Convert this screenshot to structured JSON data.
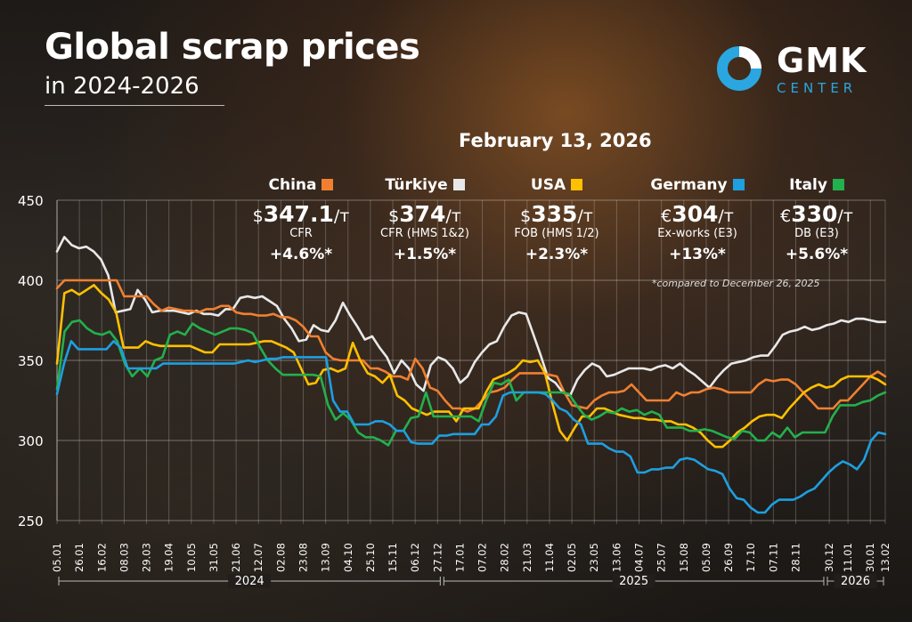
{
  "header": {
    "title": "Global scrap prices",
    "subtitle": "in 2024-2026",
    "date": "February 13, 2026",
    "note": "*compared to December 26, 2025"
  },
  "logo": {
    "word": "GMK",
    "sub": "CENTER",
    "accent": "#2aa7e0"
  },
  "cards": [
    {
      "name": "China",
      "currency": "$",
      "value": "347.1",
      "unit": "/т",
      "basis": "CFR",
      "change": "+4.6%*",
      "color": "#f08030"
    },
    {
      "name": "Türkiye",
      "currency": "$",
      "value": "374",
      "unit": "/т",
      "basis": "CFR (HMS 1&2)",
      "change": "+1.5%*",
      "color": "#e8e8e8"
    },
    {
      "name": "USA",
      "currency": "$",
      "value": "335",
      "unit": "/т",
      "basis": "FOB (HMS 1/2)",
      "change": "+2.3%*",
      "color": "#ffc000"
    },
    {
      "name": "Germany",
      "currency": "€",
      "value": "304",
      "unit": "/т",
      "basis": "Ex-works (E3)",
      "change": "+13%*",
      "color": "#1e9fe0"
    },
    {
      "name": "Italy",
      "currency": "€",
      "value": "330",
      "unit": "/т",
      "basis": "DB (E3)",
      "change": "+5.6%*",
      "color": "#22b14c"
    }
  ],
  "chart_data": {
    "type": "line",
    "ylim": [
      250,
      450
    ],
    "yticks": [
      250,
      300,
      350,
      400,
      450
    ],
    "grid": true,
    "legend": "top",
    "x_tick_labels": [
      "05.01",
      "26.01",
      "16.02",
      "08.03",
      "29.03",
      "19.04",
      "10.05",
      "31.05",
      "21.06",
      "12.07",
      "02.08",
      "23.08",
      "13.09",
      "04.10",
      "25.10",
      "15.11",
      "06.12",
      "27.12",
      "17.01",
      "07.02",
      "28.02",
      "21.03",
      "11.04",
      "02.05",
      "23.05",
      "13.06",
      "04.07",
      "25.07",
      "15.08",
      "05.09",
      "26.09",
      "17.10",
      "07.11",
      "28.11",
      "30.12",
      "11.01",
      "30.01",
      "13.02"
    ],
    "x_tick_pos": [
      0,
      3,
      6,
      9,
      12,
      15,
      18,
      21,
      24,
      27,
      30,
      33,
      36,
      39,
      42,
      45,
      48,
      51,
      54,
      57,
      60,
      63,
      66,
      69,
      72,
      75,
      78,
      81,
      84,
      87,
      90,
      93,
      96,
      99,
      103.5,
      106,
      109,
      111
    ],
    "years": [
      {
        "label": "2024",
        "start": 0,
        "end": 51.6
      },
      {
        "label": "2025",
        "start": 51.6,
        "end": 103
      },
      {
        "label": "2026",
        "start": 103,
        "end": 111
      }
    ],
    "series": [
      {
        "name": "Türkiye",
        "color": "#e8e8e8",
        "values": [
          418,
          427,
          422,
          420,
          421,
          418,
          413,
          403,
          380,
          381,
          382,
          394,
          388,
          380,
          381,
          381,
          381,
          380,
          379,
          381,
          379,
          379,
          378,
          382,
          382,
          389,
          390,
          389,
          390,
          387,
          384,
          376,
          370,
          362,
          363,
          372,
          369,
          368,
          375,
          386,
          378,
          371,
          363,
          365,
          358,
          352,
          342,
          350,
          345,
          335,
          331,
          347,
          352,
          350,
          345,
          336,
          340,
          349,
          355,
          360,
          362,
          371,
          378,
          380,
          379,
          366,
          353,
          339,
          336,
          330,
          328,
          338,
          344,
          348,
          346,
          340,
          341,
          343,
          345,
          345,
          345,
          344,
          346,
          347,
          345,
          348,
          344,
          341,
          337,
          333,
          339,
          344,
          348,
          349,
          350,
          352,
          353,
          353,
          359,
          366,
          368,
          369,
          371,
          369,
          370,
          372,
          373,
          375,
          374,
          376,
          376,
          375,
          374,
          374
        ]
      },
      {
        "name": "China",
        "color": "#f08030",
        "values": [
          395,
          400,
          400,
          400,
          400,
          400,
          400,
          400,
          400,
          390,
          390,
          390,
          390,
          385,
          381,
          383,
          382,
          381,
          381,
          380,
          382,
          382,
          384,
          384,
          380,
          379,
          379,
          378,
          378,
          379,
          377,
          377,
          375,
          371,
          365,
          365,
          355,
          351,
          350,
          350,
          350,
          350,
          345,
          345,
          343,
          340,
          340,
          338,
          351,
          345,
          333,
          331,
          325,
          320,
          320,
          318,
          320,
          325,
          330,
          331,
          333,
          338,
          342,
          342,
          342,
          342,
          341,
          340,
          330,
          322,
          321,
          320,
          325,
          328,
          330,
          330,
          331,
          335,
          330,
          325,
          325,
          325,
          325,
          330,
          328,
          330,
          330,
          332,
          333,
          332,
          330,
          330,
          330,
          330,
          335,
          338,
          337,
          338,
          338,
          335,
          330,
          325,
          320,
          320,
          320,
          325,
          325,
          330,
          335,
          340,
          343,
          340
        ]
      },
      {
        "name": "USA",
        "color": "#ffc000",
        "values": [
          348,
          392,
          394,
          391,
          394,
          397,
          392,
          388,
          380,
          358,
          358,
          358,
          362,
          360,
          359,
          359,
          359,
          359,
          359,
          357,
          355,
          355,
          360,
          360,
          360,
          360,
          360,
          361,
          362,
          362,
          360,
          358,
          355,
          345,
          335,
          336,
          344,
          345,
          343,
          345,
          361,
          350,
          342,
          340,
          336,
          341,
          328,
          325,
          320,
          318,
          316,
          318,
          318,
          318,
          312,
          320,
          320,
          320,
          330,
          338,
          340,
          342,
          345,
          350,
          349,
          350,
          342,
          323,
          306,
          300,
          308,
          315,
          315,
          320,
          320,
          318,
          316,
          315,
          314,
          314,
          313,
          313,
          312,
          312,
          310,
          310,
          308,
          305,
          300,
          296,
          296,
          300,
          305,
          308,
          312,
          315,
          316,
          316,
          314,
          320,
          325,
          330,
          333,
          335,
          333,
          334,
          338,
          340,
          340,
          340,
          340,
          338,
          335
        ]
      },
      {
        "name": "Italy",
        "color": "#22b14c",
        "values": [
          332,
          368,
          374,
          375,
          370,
          367,
          366,
          368,
          362,
          348,
          340,
          345,
          340,
          350,
          352,
          366,
          368,
          366,
          373,
          370,
          368,
          366,
          368,
          370,
          370,
          369,
          367,
          358,
          350,
          345,
          341,
          341,
          341,
          341,
          341,
          340,
          322,
          313,
          317,
          313,
          305,
          302,
          302,
          300,
          297,
          306,
          306,
          314,
          315,
          330,
          315,
          315,
          315,
          315,
          315,
          315,
          312,
          325,
          336,
          335,
          338,
          325,
          330,
          330,
          330,
          330,
          330,
          330,
          329,
          322,
          316,
          313,
          315,
          318,
          317,
          320,
          318,
          319,
          316,
          318,
          316,
          308,
          308,
          308,
          306,
          306,
          307,
          306,
          304,
          302,
          301,
          306,
          305,
          300,
          300,
          305,
          302,
          308,
          302,
          305,
          305,
          305,
          305,
          315,
          322,
          322,
          322,
          324,
          325,
          328,
          330
        ]
      },
      {
        "name": "Germany",
        "color": "#1e9fe0",
        "values": [
          329,
          348,
          362,
          357,
          357,
          357,
          357,
          357,
          362,
          358,
          345,
          345,
          345,
          345,
          345,
          348,
          348,
          348,
          348,
          348,
          348,
          348,
          348,
          348,
          348,
          348,
          349,
          350,
          349,
          350,
          351,
          351,
          352,
          352,
          352,
          352,
          352,
          352,
          352,
          325,
          318,
          318,
          310,
          310,
          310,
          312,
          312,
          310,
          306,
          306,
          299,
          298,
          298,
          298,
          303,
          303,
          304,
          304,
          304,
          304,
          310,
          310,
          315,
          328,
          330,
          330,
          330,
          330,
          330,
          329,
          325,
          320,
          318,
          313,
          310,
          298,
          298,
          298,
          295,
          293,
          293,
          290,
          280,
          280,
          282,
          282,
          283,
          283,
          288,
          289,
          288,
          285,
          282,
          281,
          279,
          270,
          264,
          263,
          258,
          255,
          255,
          260,
          263,
          263,
          263,
          265,
          268,
          270,
          275,
          280,
          284,
          287,
          285,
          282,
          288,
          300,
          305,
          304
        ]
      }
    ]
  }
}
